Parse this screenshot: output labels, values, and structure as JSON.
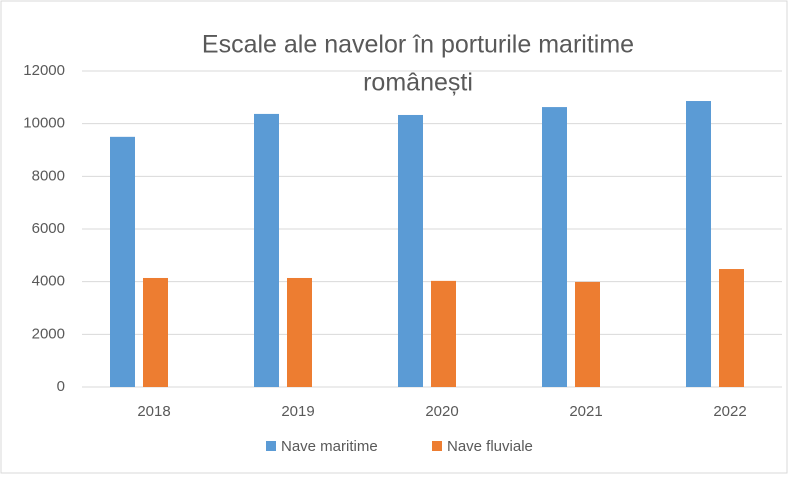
{
  "chart_data": {
    "type": "bar",
    "title_lines": [
      "Escale ale navelor în porturile maritime",
      "românești"
    ],
    "categories": [
      "2018",
      "2019",
      "2020",
      "2021",
      "2022"
    ],
    "series": [
      {
        "name": "Nave maritime",
        "color": "#5b9bd5",
        "values": [
          9500,
          10370,
          10330,
          10630,
          10860
        ]
      },
      {
        "name": "Nave fluviale",
        "color": "#ed7d31",
        "values": [
          4140,
          4140,
          4030,
          3990,
          4480
        ]
      }
    ],
    "ylim": [
      0,
      12000
    ],
    "yticks": [
      0,
      2000,
      4000,
      6000,
      8000,
      10000,
      12000
    ],
    "grid": true,
    "legend": "bottom"
  }
}
